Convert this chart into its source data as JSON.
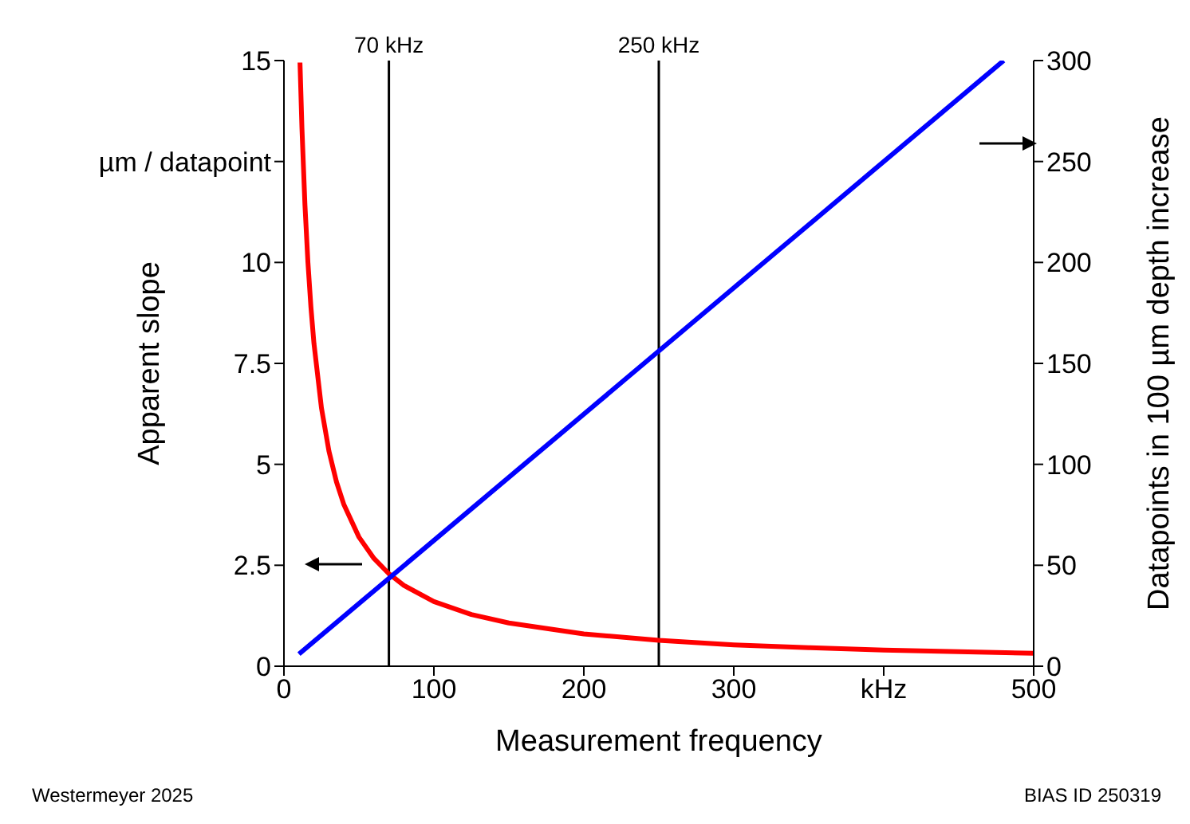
{
  "chart_data": {
    "type": "line",
    "xlabel": "Measurement frequency",
    "ylabel": "Apparent slope",
    "y2label": "Datapoints in 100 µm depth increase",
    "xlim": [
      0,
      500
    ],
    "xticks": [
      0,
      100,
      200,
      300,
      {
        "value": 400,
        "label": "kHz"
      },
      500
    ],
    "ylim": [
      0,
      15
    ],
    "yticks": [
      0,
      2.5,
      5,
      7.5,
      10,
      {
        "value": 12.5,
        "label": "µm / datapoint"
      },
      15
    ],
    "y2lim": [
      0,
      300
    ],
    "y2ticks": [
      0,
      50,
      100,
      150,
      200,
      250,
      300
    ],
    "grid": false,
    "marker": "none",
    "line_style": "solid",
    "series": [
      {
        "color": "#ff0000",
        "axis": "y",
        "x": [
          10.7,
          12,
          14,
          16,
          18,
          20,
          25,
          30,
          35,
          40,
          50,
          60,
          70,
          80,
          100,
          125,
          150,
          200,
          250,
          300,
          350,
          400,
          450,
          500
        ],
        "values": [
          14.95,
          13.33,
          11.43,
          10,
          8.89,
          8,
          6.4,
          5.33,
          4.57,
          4,
          3.2,
          2.67,
          2.29,
          2,
          1.6,
          1.28,
          1.07,
          0.8,
          0.64,
          0.53,
          0.46,
          0.4,
          0.36,
          0.32
        ]
      },
      {
        "color": "#0000ff",
        "axis": "y2",
        "x": [
          10,
          480
        ],
        "values": [
          6,
          300
        ]
      }
    ],
    "ref_lines": [
      {
        "axis": "x",
        "value": 70,
        "label": "70 kHz",
        "color": "#000000"
      },
      {
        "axis": "x",
        "value": 250,
        "label": "250 kHz",
        "color": "#000000"
      }
    ],
    "annotations": [
      "Westermeyer 2025",
      "BIAS ID 250319"
    ]
  }
}
